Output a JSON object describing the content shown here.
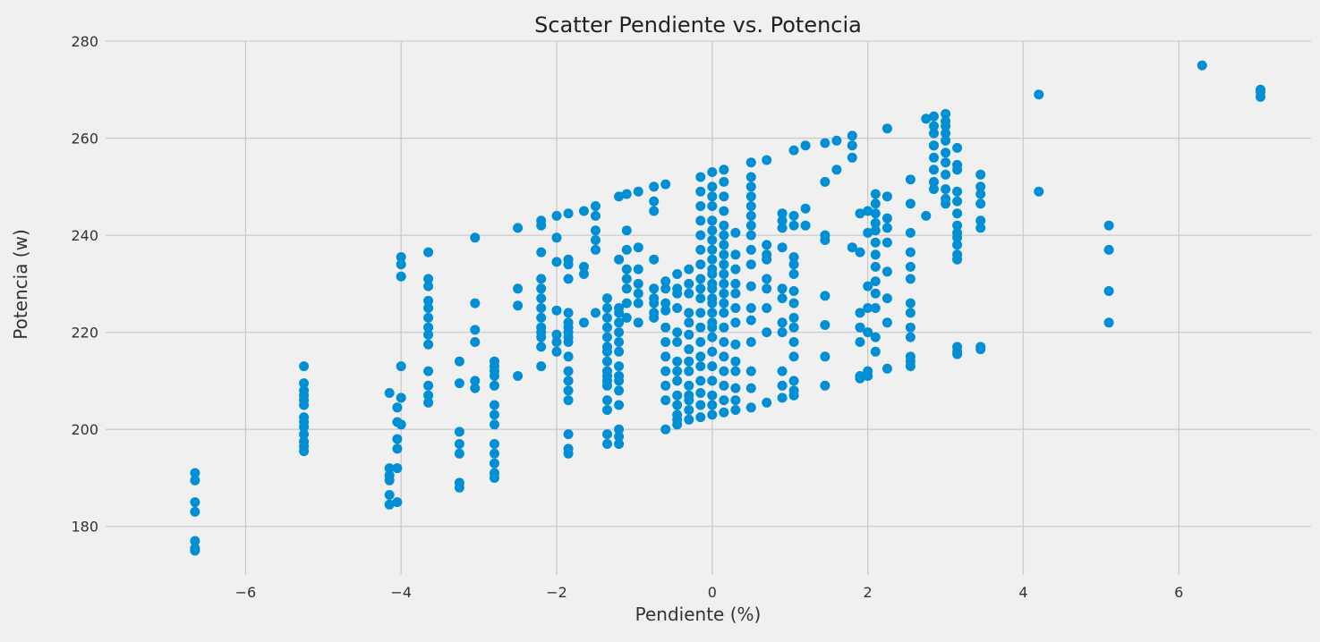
{
  "chart_data": {
    "type": "scatter",
    "title": "Scatter Pendiente vs. Potencia",
    "xlabel": "Pendiente (%)",
    "ylabel": "Potencia (w)",
    "xlim": [
      -7.8,
      7.7
    ],
    "ylim": [
      170,
      280
    ],
    "xticks": [
      -6,
      -4,
      -2,
      0,
      2,
      4,
      6
    ],
    "xtick_labels": [
      "−6",
      "−4",
      "−2",
      "0",
      "2",
      "4",
      "6"
    ],
    "yticks": [
      180,
      200,
      220,
      240,
      260,
      280
    ],
    "ytick_labels": [
      "180",
      "200",
      "220",
      "240",
      "260",
      "280"
    ],
    "grid": true,
    "legend": "none",
    "colors": {
      "points": "#008fd5",
      "background": "#f0f0f0",
      "grid": "#cbcbcb"
    },
    "columns": [
      {
        "x": -6.65,
        "y": [
          175,
          175.5,
          177,
          183,
          185,
          189.5,
          191
        ]
      },
      {
        "x": -5.25,
        "y": [
          195.5,
          196.5,
          197.5,
          199,
          200.5,
          201.5,
          202.5,
          205,
          206,
          207,
          208,
          209.5,
          213
        ]
      },
      {
        "x": -4.15,
        "y": [
          184.5,
          186.5,
          189.5,
          190.5,
          192,
          207.5
        ]
      },
      {
        "x": -4.05,
        "y": [
          185,
          192,
          196,
          198,
          201.5,
          204.5
        ]
      },
      {
        "x": -4.0,
        "y": [
          201,
          206.5,
          213,
          231.5,
          234,
          235.5
        ]
      },
      {
        "x": -3.65,
        "y": [
          205.5,
          207,
          209,
          212,
          217.5,
          219.5,
          221,
          223,
          225,
          226.5,
          229.5,
          231,
          236.5
        ]
      },
      {
        "x": -3.25,
        "y": [
          188,
          189,
          195,
          197,
          199.5,
          209.5,
          214
        ]
      },
      {
        "x": -3.05,
        "y": [
          208.5,
          210,
          218,
          220.5,
          226,
          239.5
        ]
      },
      {
        "x": -2.8,
        "y": [
          190,
          191,
          193,
          195,
          197,
          201,
          203,
          205,
          209,
          211,
          212,
          213,
          214
        ]
      },
      {
        "x": -2.5,
        "y": [
          211,
          225.5,
          229,
          241.5
        ]
      },
      {
        "x": -2.2,
        "y": [
          213,
          217,
          219,
          220,
          221,
          223,
          225,
          227,
          229,
          231,
          236.5,
          242,
          243
        ]
      },
      {
        "x": -2.0,
        "y": [
          216,
          218,
          219.5,
          224.5,
          234.5,
          239.5,
          244
        ]
      },
      {
        "x": -1.85,
        "y": [
          195,
          196,
          199,
          206,
          208,
          210,
          212,
          215,
          218,
          219,
          220,
          221,
          222,
          224,
          231,
          234,
          235,
          244.5
        ]
      },
      {
        "x": -1.65,
        "y": [
          222,
          232,
          233.5,
          245
        ]
      },
      {
        "x": -1.5,
        "y": [
          224,
          237,
          239,
          241,
          244,
          246
        ]
      },
      {
        "x": -1.35,
        "y": [
          197,
          199,
          204,
          206,
          209,
          210,
          211,
          212,
          214,
          216,
          217,
          219,
          221,
          223,
          225,
          227
        ]
      },
      {
        "x": -1.2,
        "y": [
          197,
          198.5,
          200,
          205,
          208,
          210,
          211,
          213,
          216,
          218,
          220,
          222,
          224,
          225,
          235,
          248
        ]
      },
      {
        "x": -1.1,
        "y": [
          223,
          226,
          229,
          231,
          233,
          237,
          241,
          248.5
        ]
      },
      {
        "x": -0.95,
        "y": [
          222,
          226,
          228,
          230,
          233,
          237.5,
          249
        ]
      },
      {
        "x": -0.75,
        "y": [
          223,
          224,
          226,
          227,
          229,
          235,
          245,
          247,
          250
        ]
      },
      {
        "x": -0.6,
        "y": [
          200,
          206,
          209,
          212,
          215,
          218,
          221,
          224.5,
          226,
          229,
          230.5,
          250.5
        ]
      },
      {
        "x": -0.45,
        "y": [
          201,
          202,
          203,
          205,
          207,
          210,
          212,
          214,
          218,
          220,
          225,
          228,
          229,
          232
        ]
      },
      {
        "x": -0.3,
        "y": [
          202,
          204,
          206,
          207,
          209,
          212,
          214,
          216.5,
          219.5,
          222,
          224,
          228,
          230,
          233
        ]
      },
      {
        "x": -0.15,
        "y": [
          202.5,
          205,
          207.5,
          210,
          213,
          215,
          218,
          221,
          224,
          227,
          229,
          231,
          234,
          237,
          240,
          243,
          246,
          249,
          252
        ]
      },
      {
        "x": 0.0,
        "y": [
          203,
          205,
          207,
          210,
          213,
          216,
          219,
          221,
          222,
          224,
          226,
          227,
          229,
          230,
          232,
          233,
          235,
          237,
          239,
          241,
          243,
          246,
          248,
          250,
          253
        ]
      },
      {
        "x": 0.15,
        "y": [
          203.5,
          206,
          209,
          212,
          215,
          218,
          221,
          224,
          226,
          228,
          230,
          232,
          234,
          236,
          238,
          240,
          242,
          245,
          248,
          251,
          253.5
        ]
      },
      {
        "x": 0.3,
        "y": [
          204,
          206,
          208.5,
          212,
          214,
          217.5,
          222,
          225,
          228,
          230,
          233,
          236,
          240.5
        ]
      },
      {
        "x": 0.5,
        "y": [
          204.5,
          208.5,
          212,
          218,
          222.5,
          225,
          229.5,
          234,
          237,
          240,
          242,
          244,
          246,
          248,
          250,
          252,
          255
        ]
      },
      {
        "x": 0.7,
        "y": [
          205.5,
          220,
          225,
          229,
          231,
          235,
          236,
          238,
          255.5
        ]
      },
      {
        "x": 0.9,
        "y": [
          206.5,
          209,
          212,
          220,
          222,
          227,
          229,
          237.5,
          241.5,
          243,
          244.5
        ]
      },
      {
        "x": 1.05,
        "y": [
          207,
          208,
          210,
          215,
          218,
          221,
          223,
          226,
          228.5,
          232,
          234,
          235.5,
          242,
          244,
          257.5
        ]
      },
      {
        "x": 1.2,
        "y": [
          242,
          245.5,
          258.5
        ]
      },
      {
        "x": 1.45,
        "y": [
          209,
          215,
          221.5,
          227.5,
          239,
          240,
          251,
          259
        ]
      },
      {
        "x": 1.6,
        "y": [
          253.5,
          259.5
        ]
      },
      {
        "x": 1.8,
        "y": [
          237.5,
          256,
          258.5,
          260.5
        ]
      },
      {
        "x": 1.9,
        "y": [
          210.5,
          211,
          218,
          221,
          224,
          236.5,
          244.5
        ]
      },
      {
        "x": 2.0,
        "y": [
          211,
          212,
          220,
          225,
          229.5,
          240.5,
          245
        ]
      },
      {
        "x": 2.1,
        "y": [
          216,
          219,
          225,
          228,
          230.5,
          233.5,
          236,
          238.5,
          241,
          242.5,
          244.5,
          246.5,
          248.5
        ]
      },
      {
        "x": 2.25,
        "y": [
          212.5,
          222,
          227,
          232.5,
          238.5,
          241.5,
          243.5,
          248,
          262
        ]
      },
      {
        "x": 2.55,
        "y": [
          213,
          214,
          215,
          219,
          221,
          224,
          226,
          231,
          233.5,
          236.5,
          240.5,
          246.5,
          251.5
        ]
      },
      {
        "x": 2.75,
        "y": [
          244,
          264
        ]
      },
      {
        "x": 2.85,
        "y": [
          249.5,
          251,
          253.5,
          256,
          258.5,
          261,
          262.5,
          264.5,
          258.5
        ]
      },
      {
        "x": 3.0,
        "y": [
          246.5,
          247.5,
          249.5,
          252.5,
          255,
          257,
          259.5,
          261,
          262.5,
          263.5,
          265
        ]
      },
      {
        "x": 3.15,
        "y": [
          215.5,
          216,
          217,
          235,
          236,
          238,
          239.5,
          240.5,
          242,
          244.5,
          247,
          249,
          253.5,
          254.5,
          258
        ]
      },
      {
        "x": 3.45,
        "y": [
          216.5,
          217,
          241.5,
          243,
          246.5,
          248.5,
          250,
          252.5
        ]
      },
      {
        "x": 4.2,
        "y": [
          249,
          269
        ]
      },
      {
        "x": 5.1,
        "y": [
          222,
          228.5,
          237,
          242
        ]
      },
      {
        "x": 6.3,
        "y": [
          275
        ]
      },
      {
        "x": 7.05,
        "y": [
          268.5,
          269.5,
          270
        ]
      }
    ]
  }
}
